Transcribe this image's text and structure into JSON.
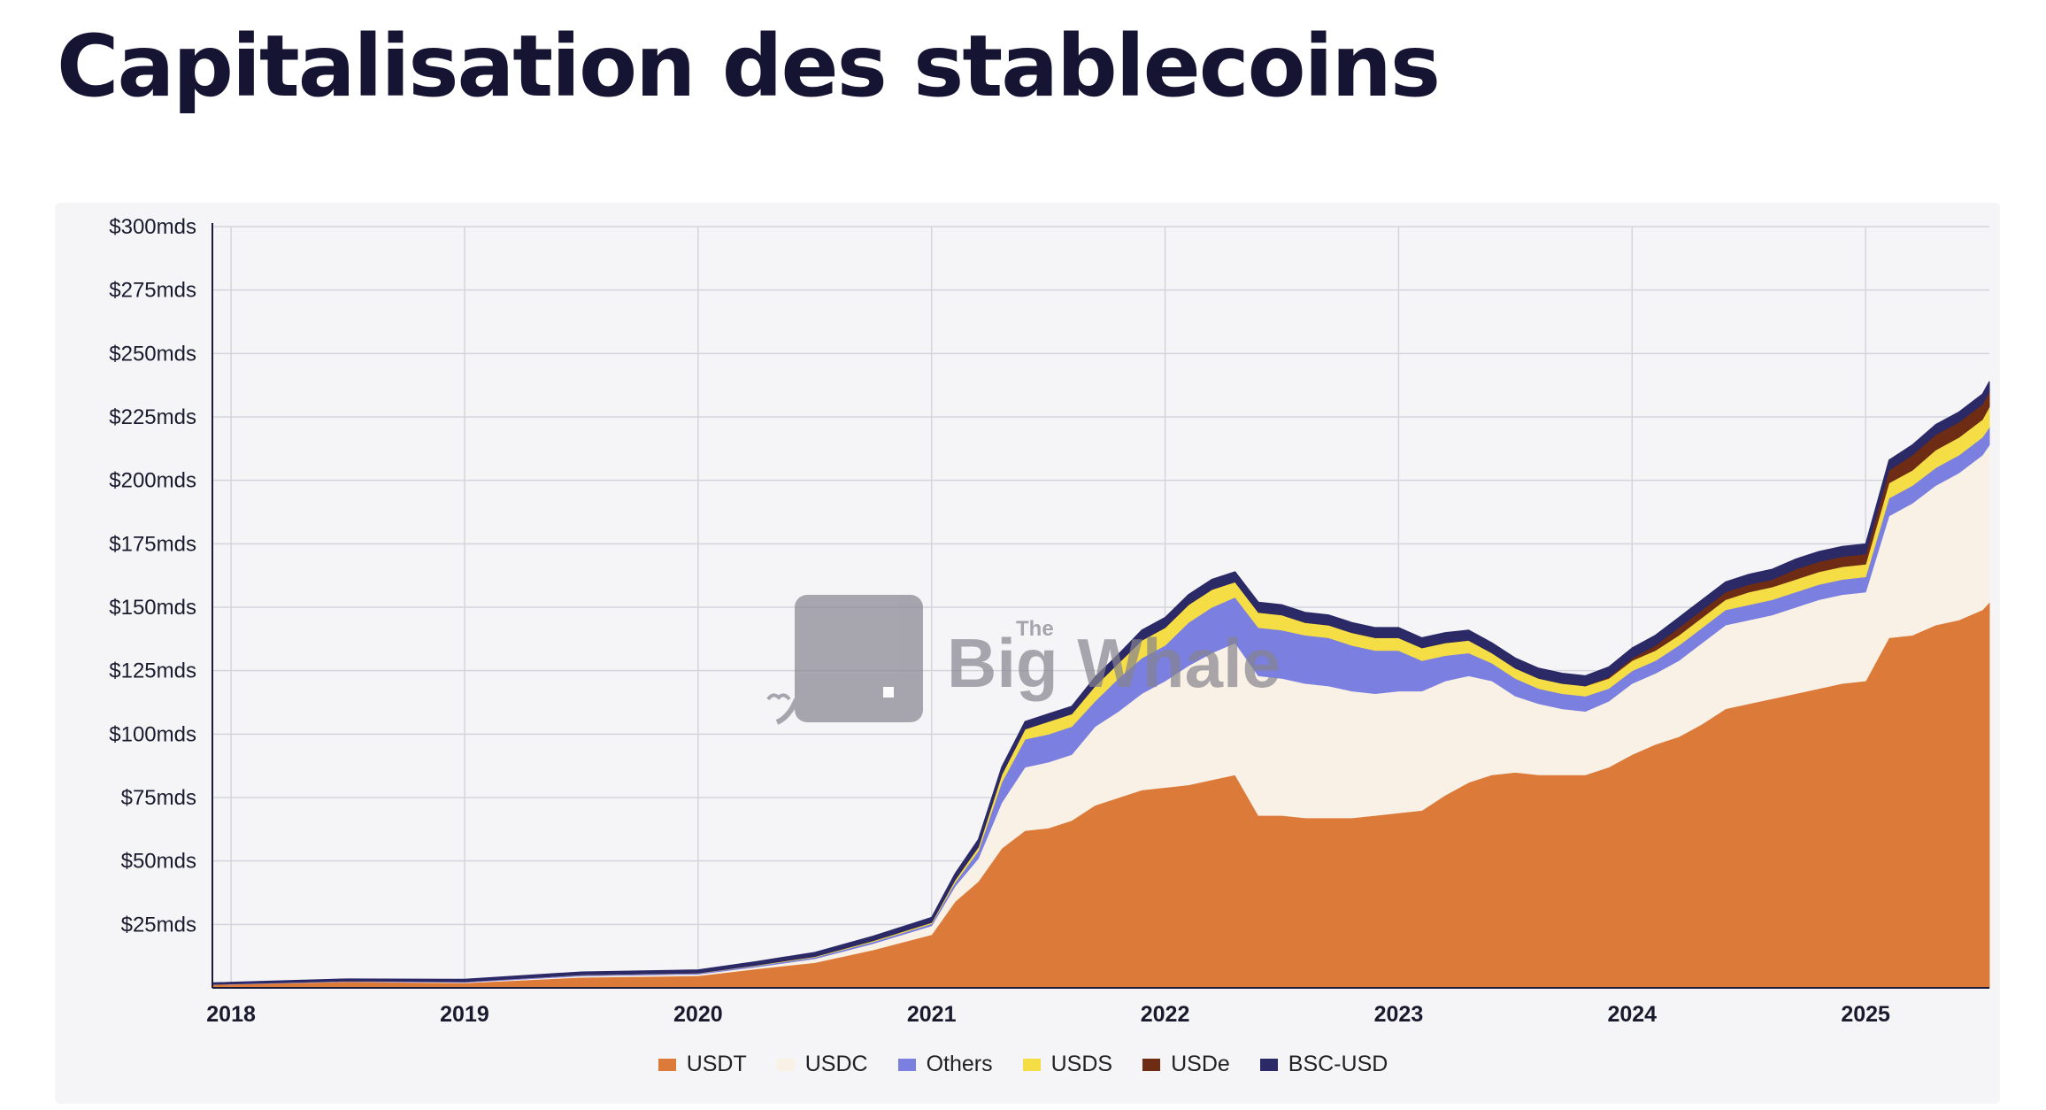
{
  "page": {
    "title": "Capitalisation des stablecoins"
  },
  "watermark": {
    "the": "The",
    "brand": "Big Whale",
    "icon": "whale-logo"
  },
  "chart_data": {
    "type": "area",
    "stacked": true,
    "title": "Capitalisation des stablecoins",
    "xlabel": "",
    "ylabel": "",
    "ylim": [
      0,
      300
    ],
    "x_range": [
      2017.92,
      2025.53
    ],
    "y_ticks": [
      25,
      50,
      75,
      100,
      125,
      150,
      175,
      200,
      225,
      250,
      275,
      300
    ],
    "y_tick_labels": [
      "$25mds",
      "$50mds",
      "$75mds",
      "$100mds",
      "$125mds",
      "$150mds",
      "$175mds",
      "$200mds",
      "$225mds",
      "$250mds",
      "$275mds",
      "$300mds"
    ],
    "x_ticks": [
      2018,
      2019,
      2020,
      2021,
      2022,
      2023,
      2024,
      2025
    ],
    "x_tick_labels": [
      "2018",
      "2019",
      "2020",
      "2021",
      "2022",
      "2023",
      "2024",
      "2025"
    ],
    "grid": true,
    "legend_position": "bottom",
    "x": [
      2017.92,
      2018.5,
      2019.0,
      2019.5,
      2020.0,
      2020.25,
      2020.5,
      2020.75,
      2021.0,
      2021.1,
      2021.2,
      2021.3,
      2021.4,
      2021.5,
      2021.6,
      2021.7,
      2021.8,
      2021.9,
      2022.0,
      2022.1,
      2022.2,
      2022.3,
      2022.4,
      2022.5,
      2022.6,
      2022.7,
      2022.8,
      2022.9,
      2023.0,
      2023.1,
      2023.2,
      2023.3,
      2023.4,
      2023.5,
      2023.6,
      2023.7,
      2023.8,
      2023.9,
      2024.0,
      2024.1,
      2024.2,
      2024.3,
      2024.4,
      2024.5,
      2024.6,
      2024.7,
      2024.8,
      2024.9,
      2025.0,
      2025.1,
      2025.2,
      2025.3,
      2025.4,
      2025.5,
      2025.53
    ],
    "series": [
      {
        "name": "USDT",
        "color": "#dc7a39",
        "values": [
          1.3,
          2.5,
          2.0,
          4.2,
          4.8,
          7.5,
          10,
          15,
          21,
          34,
          42,
          55,
          62,
          63,
          66,
          72,
          75,
          78,
          79,
          80,
          82,
          84,
          68,
          68,
          67,
          67,
          67,
          68,
          69,
          70,
          76,
          81,
          84,
          85,
          84,
          84,
          84,
          87,
          92,
          96,
          99,
          104,
          110,
          112,
          114,
          116,
          118,
          120,
          121,
          138,
          139,
          143,
          145,
          149,
          152
        ]
      },
      {
        "name": "USDC",
        "color": "#faf1e6",
        "values": [
          0,
          0.05,
          0.2,
          0.5,
          0.6,
          0.8,
          1.5,
          2.5,
          3.5,
          6,
          9,
          18,
          25,
          26,
          26,
          31,
          34,
          38,
          42,
          47,
          50,
          52,
          55,
          54,
          53,
          52,
          50,
          48,
          48,
          47,
          45,
          42,
          37,
          30,
          28,
          26,
          25,
          26,
          28,
          28,
          30,
          32,
          33,
          33,
          33,
          34,
          35,
          35,
          35,
          48,
          52,
          55,
          58,
          61,
          62
        ]
      },
      {
        "name": "Others",
        "color": "#7a7fe0",
        "values": [
          0.1,
          0.2,
          0.3,
          0.4,
          0.4,
          0.5,
          0.6,
          0.7,
          0.8,
          1.5,
          3,
          8,
          11,
          11,
          11,
          10,
          13,
          14,
          14,
          17,
          18,
          18,
          19,
          19,
          19,
          19,
          18,
          17,
          16,
          12,
          10,
          9,
          7,
          7,
          6,
          6,
          6,
          5,
          5,
          5,
          6,
          6,
          6,
          6,
          6,
          6,
          6,
          6,
          6,
          7,
          7,
          7,
          7,
          7,
          7
        ]
      },
      {
        "name": "USDS",
        "color": "#f5dd45",
        "values": [
          0,
          0,
          0,
          0.1,
          0.1,
          0.2,
          0.3,
          0.4,
          0.5,
          1,
          1.5,
          3,
          4,
          5,
          5,
          6,
          6,
          7,
          7,
          7,
          7,
          6,
          6,
          6,
          5,
          5,
          5,
          5,
          5,
          5,
          5,
          5,
          4,
          4,
          4,
          4,
          4,
          4,
          4,
          4,
          4,
          4,
          4,
          5,
          5,
          5,
          5,
          5,
          5,
          6,
          6,
          7,
          7,
          7,
          8
        ]
      },
      {
        "name": "USDe",
        "color": "#6e2c14",
        "values": [
          0,
          0,
          0,
          0,
          0,
          0,
          0,
          0,
          0,
          0,
          0,
          0,
          0,
          0,
          0,
          0,
          0,
          0,
          0,
          0,
          0,
          0,
          0,
          0,
          0,
          0,
          0,
          0,
          0,
          0,
          0,
          0,
          0,
          0,
          0,
          0,
          0,
          0.5,
          1,
          2,
          3,
          3,
          3,
          3,
          3,
          4,
          4,
          4,
          4,
          5,
          6,
          6,
          6,
          6,
          6
        ]
      },
      {
        "name": "BSC-USD",
        "color": "#2b2966",
        "values": [
          0.6,
          0.8,
          0.9,
          1.1,
          1.2,
          1.4,
          1.6,
          1.8,
          2,
          2.5,
          3,
          3,
          3,
          3,
          3,
          3.5,
          3.5,
          4,
          4,
          4,
          4,
          4,
          4,
          4,
          4,
          4,
          4,
          4,
          4,
          4,
          4,
          4,
          4,
          4,
          4,
          4,
          4,
          4,
          4,
          4,
          4,
          4,
          4,
          4,
          4,
          4,
          4,
          4,
          4,
          4,
          4,
          4,
          4,
          4,
          4
        ]
      }
    ]
  }
}
